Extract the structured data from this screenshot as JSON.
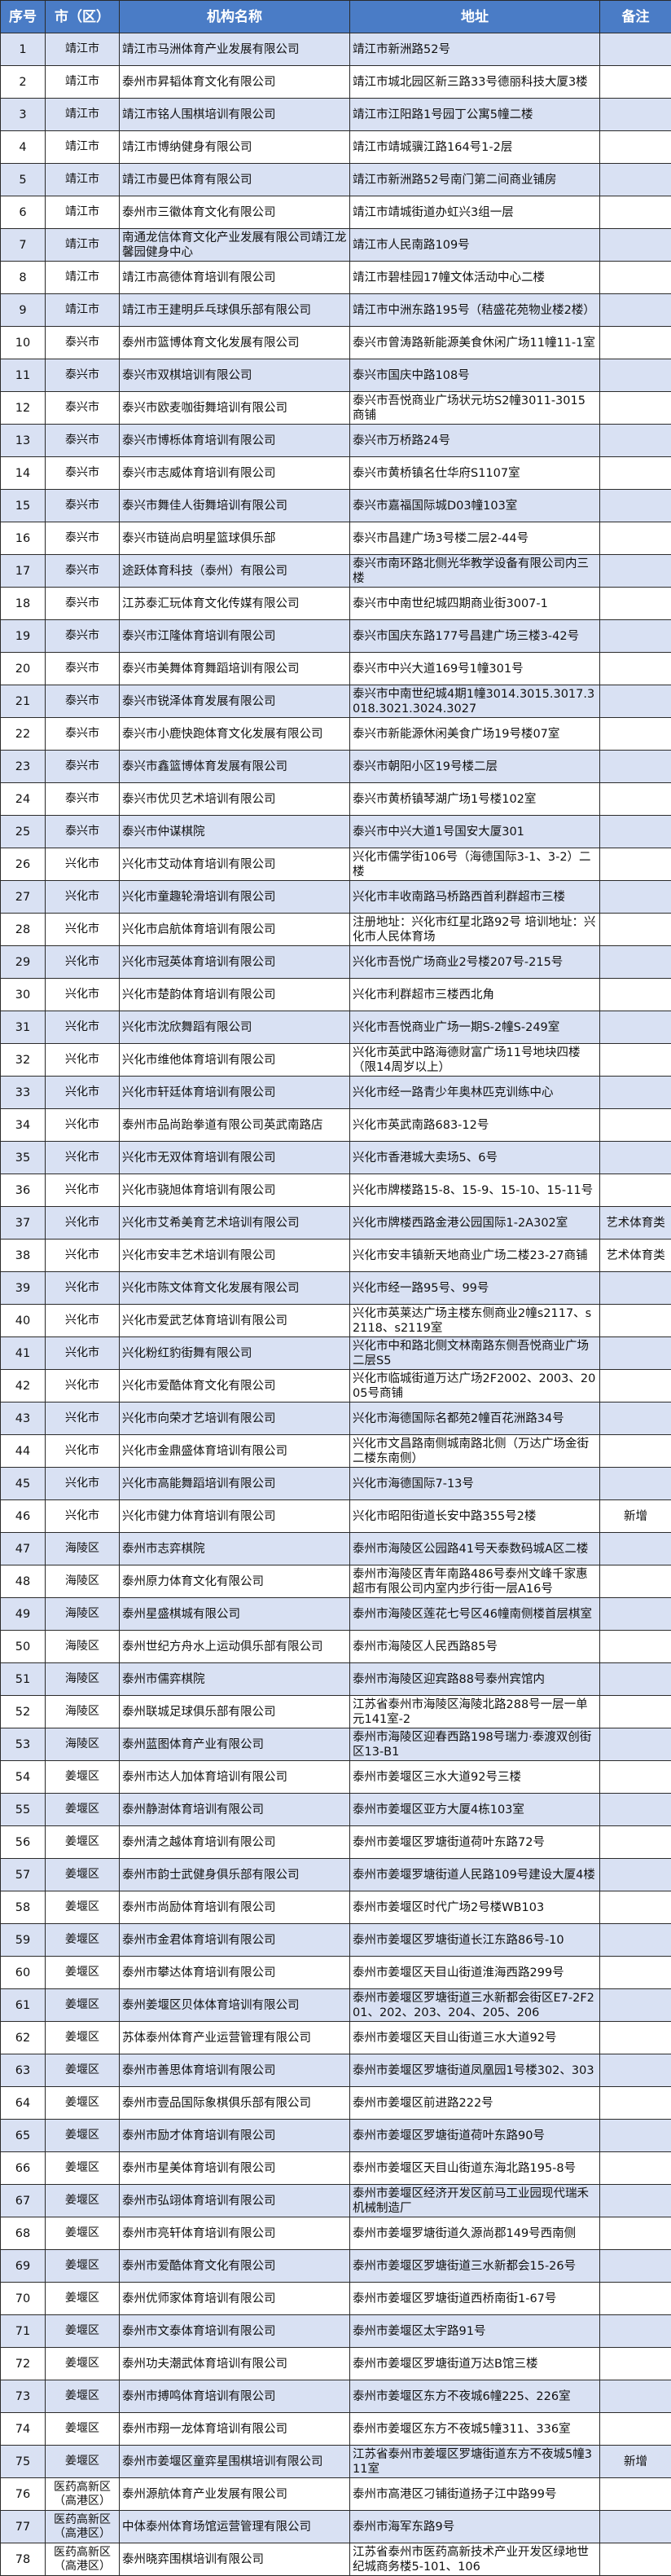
{
  "table": {
    "headers": [
      "序号",
      "市（区）",
      "机构名称",
      "地址",
      "备注"
    ],
    "header_color": "#4a7cc6",
    "stripe_color": "#d9e1f3",
    "rows": [
      [
        "1",
        "靖江市",
        "靖江市马洲体育产业发展有限公司",
        "靖江市新洲路52号",
        ""
      ],
      [
        "2",
        "靖江市",
        "泰州市昇韬体育文化有限公司",
        "靖江市城北园区新三路33号德丽科技大厦3楼",
        ""
      ],
      [
        "3",
        "靖江市",
        "靖江市铭人围棋培训有限公司",
        "靖江市江阳路1号园丁公寓5幢二楼",
        ""
      ],
      [
        "4",
        "靖江市",
        "靖江市博纳健身有限公司",
        "靖江市靖城骥江路164号1-2层",
        ""
      ],
      [
        "5",
        "靖江市",
        "靖江市曼巴体育有限公司",
        "靖江市新洲路52号南门第二间商业铺房",
        ""
      ],
      [
        "6",
        "靖江市",
        "泰州市三徽体育文化有限公司",
        "靖江市靖城街道办虹兴3组一层",
        ""
      ],
      [
        "7",
        "靖江市",
        "南通龙信体育文化产业发展有限公司靖江龙馨园健身中心",
        "靖江市人民南路109号",
        ""
      ],
      [
        "8",
        "靖江市",
        "靖江市高德体育培训有限公司",
        "靖江市碧桂园17幢文体活动中心二楼",
        ""
      ],
      [
        "9",
        "靖江市",
        "靖江市王建明乒乓球俱乐部有限公司",
        "靖江市中洲东路195号（秸盛花苑物业楼2楼）",
        ""
      ],
      [
        "10",
        "泰兴市",
        "泰州市篮博体育文化发展有限公司",
        "泰兴市曾涛路新能源美食休闲广场11幢11-1室",
        ""
      ],
      [
        "11",
        "泰兴市",
        "泰兴市双棋培训有限公司",
        "泰兴市国庆中路108号",
        ""
      ],
      [
        "12",
        "泰兴市",
        "泰兴市欧麦咖街舞培训有限公司",
        "泰兴市吾悦商业广场状元坊S2幢3011-3015商铺",
        ""
      ],
      [
        "13",
        "泰兴市",
        "泰兴市博栎体育培训有限公司",
        "泰兴市万桥路24号",
        ""
      ],
      [
        "14",
        "泰兴市",
        "泰兴市志威体育培训有限公司",
        "泰兴市黄桥镇名仕华府S1107室",
        ""
      ],
      [
        "15",
        "泰兴市",
        "泰兴市舞佳人街舞培训有限公司",
        "泰兴市嘉福国际城D03幢103室",
        ""
      ],
      [
        "16",
        "泰兴市",
        "泰兴市链尚启明星篮球俱乐部",
        "泰兴市昌建广场3号楼二层2-44号",
        ""
      ],
      [
        "17",
        "泰兴市",
        "途跃体育科技（泰州）有限公司",
        "泰兴市南环路北侧光华教学设备有限公司内三楼",
        ""
      ],
      [
        "18",
        "泰兴市",
        "江苏泰汇玩体育文化传媒有限公司",
        "泰兴市中南世纪城四期商业街3007-1",
        ""
      ],
      [
        "19",
        "泰兴市",
        "泰兴市江隆体育培训有限公司",
        "泰兴市国庆东路177号昌建广场三楼3-42号",
        ""
      ],
      [
        "20",
        "泰兴市",
        "泰兴市美舞体育舞蹈培训有限公司",
        "泰兴市中兴大道169号1幢301号",
        ""
      ],
      [
        "21",
        "泰兴市",
        "泰兴市锐泽体育发展有限公司",
        "泰兴市中南世纪城4期1幢3014.3015.3017.3018.3021.3024.3027",
        ""
      ],
      [
        "22",
        "泰兴市",
        "泰兴市小鹿快跑体育文化发展有限公司",
        "泰兴市新能源休闲美食广场19号楼07室",
        ""
      ],
      [
        "23",
        "泰兴市",
        "泰兴市鑫篮博体育发展有限公司",
        "泰兴市朝阳小区19号楼二层",
        ""
      ],
      [
        "24",
        "泰兴市",
        "泰兴市优贝艺术培训有限公司",
        "泰兴市黄桥镇琴湖广场1号楼102室",
        ""
      ],
      [
        "25",
        "泰兴市",
        "泰兴市仲谋棋院",
        "泰兴市中兴大道1号国安大厦301",
        ""
      ],
      [
        "26",
        "兴化市",
        "兴化市艾动体育培训有限公司",
        "兴化市儒学街106号（海德国际3-1、3-2）二楼",
        ""
      ],
      [
        "27",
        "兴化市",
        "兴化市童趣轮滑培训有限公司",
        "兴化市丰收南路马桥路西首利群超市三楼",
        ""
      ],
      [
        "28",
        "兴化市",
        "兴化市启航体育培训有限公司",
        "注册地址：兴化市红星北路92号 培训地址：兴化市人民体育场",
        ""
      ],
      [
        "29",
        "兴化市",
        "兴化市冠英体育培训有限公司",
        "兴化市吾悦广场商业2号楼207号-215号",
        ""
      ],
      [
        "30",
        "兴化市",
        "兴化市楚韵体育培训有限公司",
        "兴化市利群超市三楼西北角",
        ""
      ],
      [
        "31",
        "兴化市",
        "兴化市沈欣舞蹈有限公司",
        "兴化市吾悦商业广场一期S-2幢S-249室",
        ""
      ],
      [
        "32",
        "兴化市",
        "兴化市维他体育培训有限公司",
        "兴化市英武中路海德财富广场11号地块四楼（限14周岁以上）",
        ""
      ],
      [
        "33",
        "兴化市",
        "兴化市轩廷体育培训有限公司",
        "兴化市经一路青少年奥林匹克训练中心",
        ""
      ],
      [
        "34",
        "兴化市",
        "泰州市品尚跆拳道有限公司英武南路店",
        "兴化市英武南路683-12号",
        ""
      ],
      [
        "35",
        "兴化市",
        "兴化市无双体育培训有限公司",
        "兴化市香港城大卖场5、6号",
        ""
      ],
      [
        "36",
        "兴化市",
        "兴化市骁旭体育培训有限公司",
        "兴化市牌楼路15-8、15-9、15-10、15-11号",
        ""
      ],
      [
        "37",
        "兴化市",
        "兴化市艾希美育艺术培训有限公司",
        "兴化市牌楼西路金港公园国际1-2A302室",
        "艺术体育类"
      ],
      [
        "38",
        "兴化市",
        "兴化市安丰艺术培训有限公司",
        "兴化市安丰镇新天地商业广场二楼23-27商铺",
        "艺术体育类"
      ],
      [
        "39",
        "兴化市",
        "兴化市陈文体育文化发展有限公司",
        "兴化市经一路95号、99号",
        ""
      ],
      [
        "40",
        "兴化市",
        "兴化市爱武艺体育培训有限公司",
        "兴化市英莱达广场主楼东侧商业2幢s2117、s2118、s2119室",
        ""
      ],
      [
        "41",
        "兴化市",
        "兴化粉红豹街舞有限公司",
        "兴化市中和路北侧文林南路东侧吾悦商业广场二层S5",
        ""
      ],
      [
        "42",
        "兴化市",
        "兴化市爱酷体育文化有限公司",
        "兴化市临城街道万达广场2F2002、2003、2005号商铺",
        ""
      ],
      [
        "43",
        "兴化市",
        "兴化市向荣才艺培训有限公司",
        "兴化市海德国际名都苑2幢百花洲路34号",
        ""
      ],
      [
        "44",
        "兴化市",
        "兴化市金鼎盛体育培训有限公司",
        "兴化市文昌路南侧城南路北侧（万达广场金街二楼东南侧）",
        ""
      ],
      [
        "45",
        "兴化市",
        "兴化市高能舞蹈培训有限公司",
        "兴化市海德国际7-13号",
        ""
      ],
      [
        "46",
        "兴化市",
        "兴化市健力体育培训有限公司",
        "兴化市昭阳街道长安中路355号2楼",
        "新增"
      ],
      [
        "47",
        "海陵区",
        "泰州市志弈棋院",
        "泰州市海陵区公园路41号天泰数码城A区二楼",
        ""
      ],
      [
        "48",
        "海陵区",
        "泰州原力体育文化有限公司",
        "泰州市海陵区青年南路486号泰州文峰千家惠超市有限公司内室内步行街一层A16号",
        ""
      ],
      [
        "49",
        "海陵区",
        "泰州星盛棋城有限公司",
        "泰州市海陵区莲花七号区46幢南侧楼首层棋室",
        ""
      ],
      [
        "50",
        "海陵区",
        "泰州世纪方舟水上运动俱乐部有限公司",
        "泰州市海陵区人民西路85号",
        ""
      ],
      [
        "51",
        "海陵区",
        "泰州市儒弈棋院",
        "泰州市海陵区迎宾路88号泰州宾馆内",
        ""
      ],
      [
        "52",
        "海陵区",
        "泰州联城足球俱乐部有限公司",
        "江苏省泰州市海陵区海陵北路288号一层一单元141室-2",
        ""
      ],
      [
        "53",
        "海陵区",
        "泰州蓝图体育产业有限公司",
        "泰州市海陵区迎春西路198号瑞力·泰渡双创街区13-B1",
        ""
      ],
      [
        "54",
        "姜堰区",
        "泰州市达人加体育培训有限公司",
        "泰州市姜堰区三水大道92号三楼",
        ""
      ],
      [
        "55",
        "姜堰区",
        "泰州静澍体育培训有限公司",
        "泰州市姜堰区亚方大厦4栋103室",
        ""
      ],
      [
        "56",
        "姜堰区",
        "泰州清之越体育培训有限公司",
        "泰州市姜堰区罗塘街道荷叶东路72号",
        ""
      ],
      [
        "57",
        "姜堰区",
        "泰州市韵士武健身俱乐部有限公司",
        "泰州市姜堰罗塘街道人民路109号建设大厦4楼",
        ""
      ],
      [
        "58",
        "姜堰区",
        "泰州市尚励体育培训有限公司",
        "泰州市姜堰区时代广场2号楼WB103",
        ""
      ],
      [
        "59",
        "姜堰区",
        "泰州市金君体育培训有限公司",
        "泰州市姜堰区罗塘街道长江东路86号-10",
        ""
      ],
      [
        "60",
        "姜堰区",
        "泰州市攀达体育培训有限公司",
        "泰州市姜堰区天目山街道淮海西路299号",
        ""
      ],
      [
        "61",
        "姜堰区",
        "泰州姜堰区贝体体育培训有限公司",
        "泰州市姜堰区罗塘街道三水新都会街区E7-2F201、202、203、204、205、206",
        ""
      ],
      [
        "62",
        "姜堰区",
        "苏体泰州体育产业运营管理有限公司",
        "泰州市姜堰区天目山街道三水大道92号",
        ""
      ],
      [
        "63",
        "姜堰区",
        "泰州市善思体育培训有限公司",
        "泰州市姜堰区罗塘街道凤凰园1号楼302、303",
        ""
      ],
      [
        "64",
        "姜堰区",
        "泰州市壹品国际象棋俱乐部有限公司",
        "泰州市姜堰区前进路222号",
        ""
      ],
      [
        "65",
        "姜堰区",
        "泰州市励才体育培训有限公司",
        "泰州市姜堰区罗塘街道荷叶东路90号",
        ""
      ],
      [
        "66",
        "姜堰区",
        "泰州市星美体育培训有限公司",
        "泰州市姜堰区天目山街道东海北路195-8号",
        ""
      ],
      [
        "67",
        "姜堰区",
        "泰州市弘翊体育培训有限公司",
        "泰州市姜堰区经济开发区前马工业园现代瑞禾机械制造厂",
        ""
      ],
      [
        "68",
        "姜堰区",
        "泰州市亮轩体育培训有限公司",
        "泰州市姜堰罗塘街道久源尚郡149号西南侧",
        ""
      ],
      [
        "69",
        "姜堰区",
        "泰州市爱酷体育文化有限公司",
        "泰州市姜堰区罗塘街道三水新都会15-26号",
        ""
      ],
      [
        "70",
        "姜堰区",
        "泰州优师家体育培训有限公司",
        "泰州市姜堰区罗塘街道西桥南街1-67号",
        ""
      ],
      [
        "71",
        "姜堰区",
        "泰州市文泰体育培训有限公司",
        "泰州市姜堰区太宇路91号",
        ""
      ],
      [
        "72",
        "姜堰区",
        "泰州功夫潮武体育培训有限公司",
        "泰州市姜堰区罗塘街道万达B馆三楼",
        ""
      ],
      [
        "73",
        "姜堰区",
        "泰州市搏鸣体育培训有限公司",
        "泰州市姜堰区东方不夜城6幢225、226室",
        ""
      ],
      [
        "74",
        "姜堰区",
        "泰州市翔一龙体育培训有限公司",
        "泰州市姜堰区东方不夜城5幢311、336室",
        ""
      ],
      [
        "75",
        "姜堰区",
        "泰州市姜堰区童弈星围棋培训有限公司",
        "江苏省泰州市姜堰区罗塘街道东方不夜城5幢311室",
        "新增"
      ],
      [
        "76",
        "医药高新区（高港区）",
        "泰州源航体育产业发展有限公司",
        "泰州市高港区刁铺街道扬子江中路99号",
        ""
      ],
      [
        "77",
        "医药高新区（高港区）",
        "中体泰州体育场馆运营管理有限公司",
        "泰州市海军东路9号",
        ""
      ],
      [
        "78",
        "医药高新区（高港区）",
        "泰州晓弈围棋培训有限公司",
        "江苏省泰州市医药高新技术产业开发区绿地世纪城商务楼5-101、106",
        ""
      ]
    ]
  }
}
